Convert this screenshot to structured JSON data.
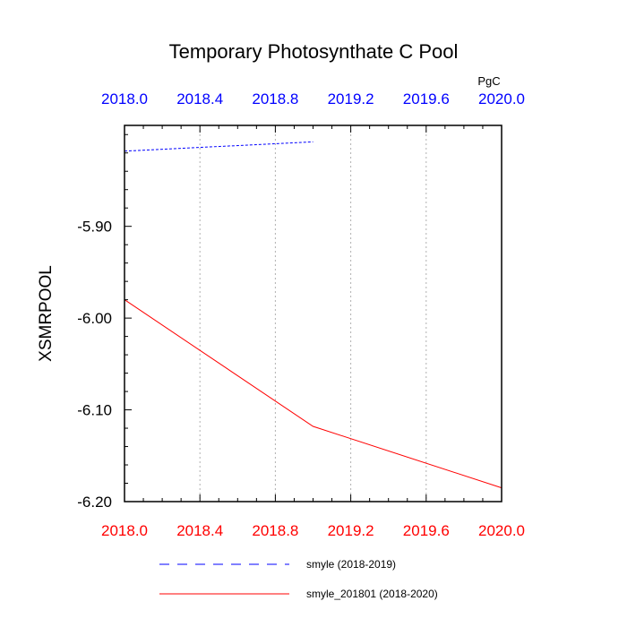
{
  "chart_data": {
    "type": "line",
    "title": "Temporary Photosynthate C Pool",
    "ylabel": "XSMRPOOL",
    "units": "PgC",
    "xlim": [
      2018.0,
      2020.0
    ],
    "ylim": [
      -6.2,
      -5.79
    ],
    "x_ticks": [
      2018.0,
      2018.4,
      2018.8,
      2019.2,
      2019.6,
      2020.0
    ],
    "x_tick_labels": [
      "2018.0",
      "2018.4",
      "2018.8",
      "2019.2",
      "2019.6",
      "2020.0"
    ],
    "y_ticks": [
      -5.9,
      -6.0,
      -6.1,
      -6.2
    ],
    "y_tick_labels": [
      "-5.90",
      "-6.00",
      "-6.10",
      "-6.20"
    ],
    "grid": "vertical dotted",
    "bottom_axis_color": "#ff0000",
    "top_axis_color": "#0000ff",
    "legend_position": "bottom",
    "series": [
      {
        "name": "smyle (2018-2019)",
        "color": "#0000ff",
        "style": "dashed",
        "x": [
          2018.0,
          2019.0
        ],
        "y": [
          -5.818,
          -5.808
        ]
      },
      {
        "name": "smyle_201801 (2018-2020)",
        "color": "#ff0000",
        "style": "solid",
        "x": [
          2018.0,
          2019.0,
          2020.0
        ],
        "y": [
          -5.98,
          -6.118,
          -6.185
        ]
      }
    ]
  }
}
